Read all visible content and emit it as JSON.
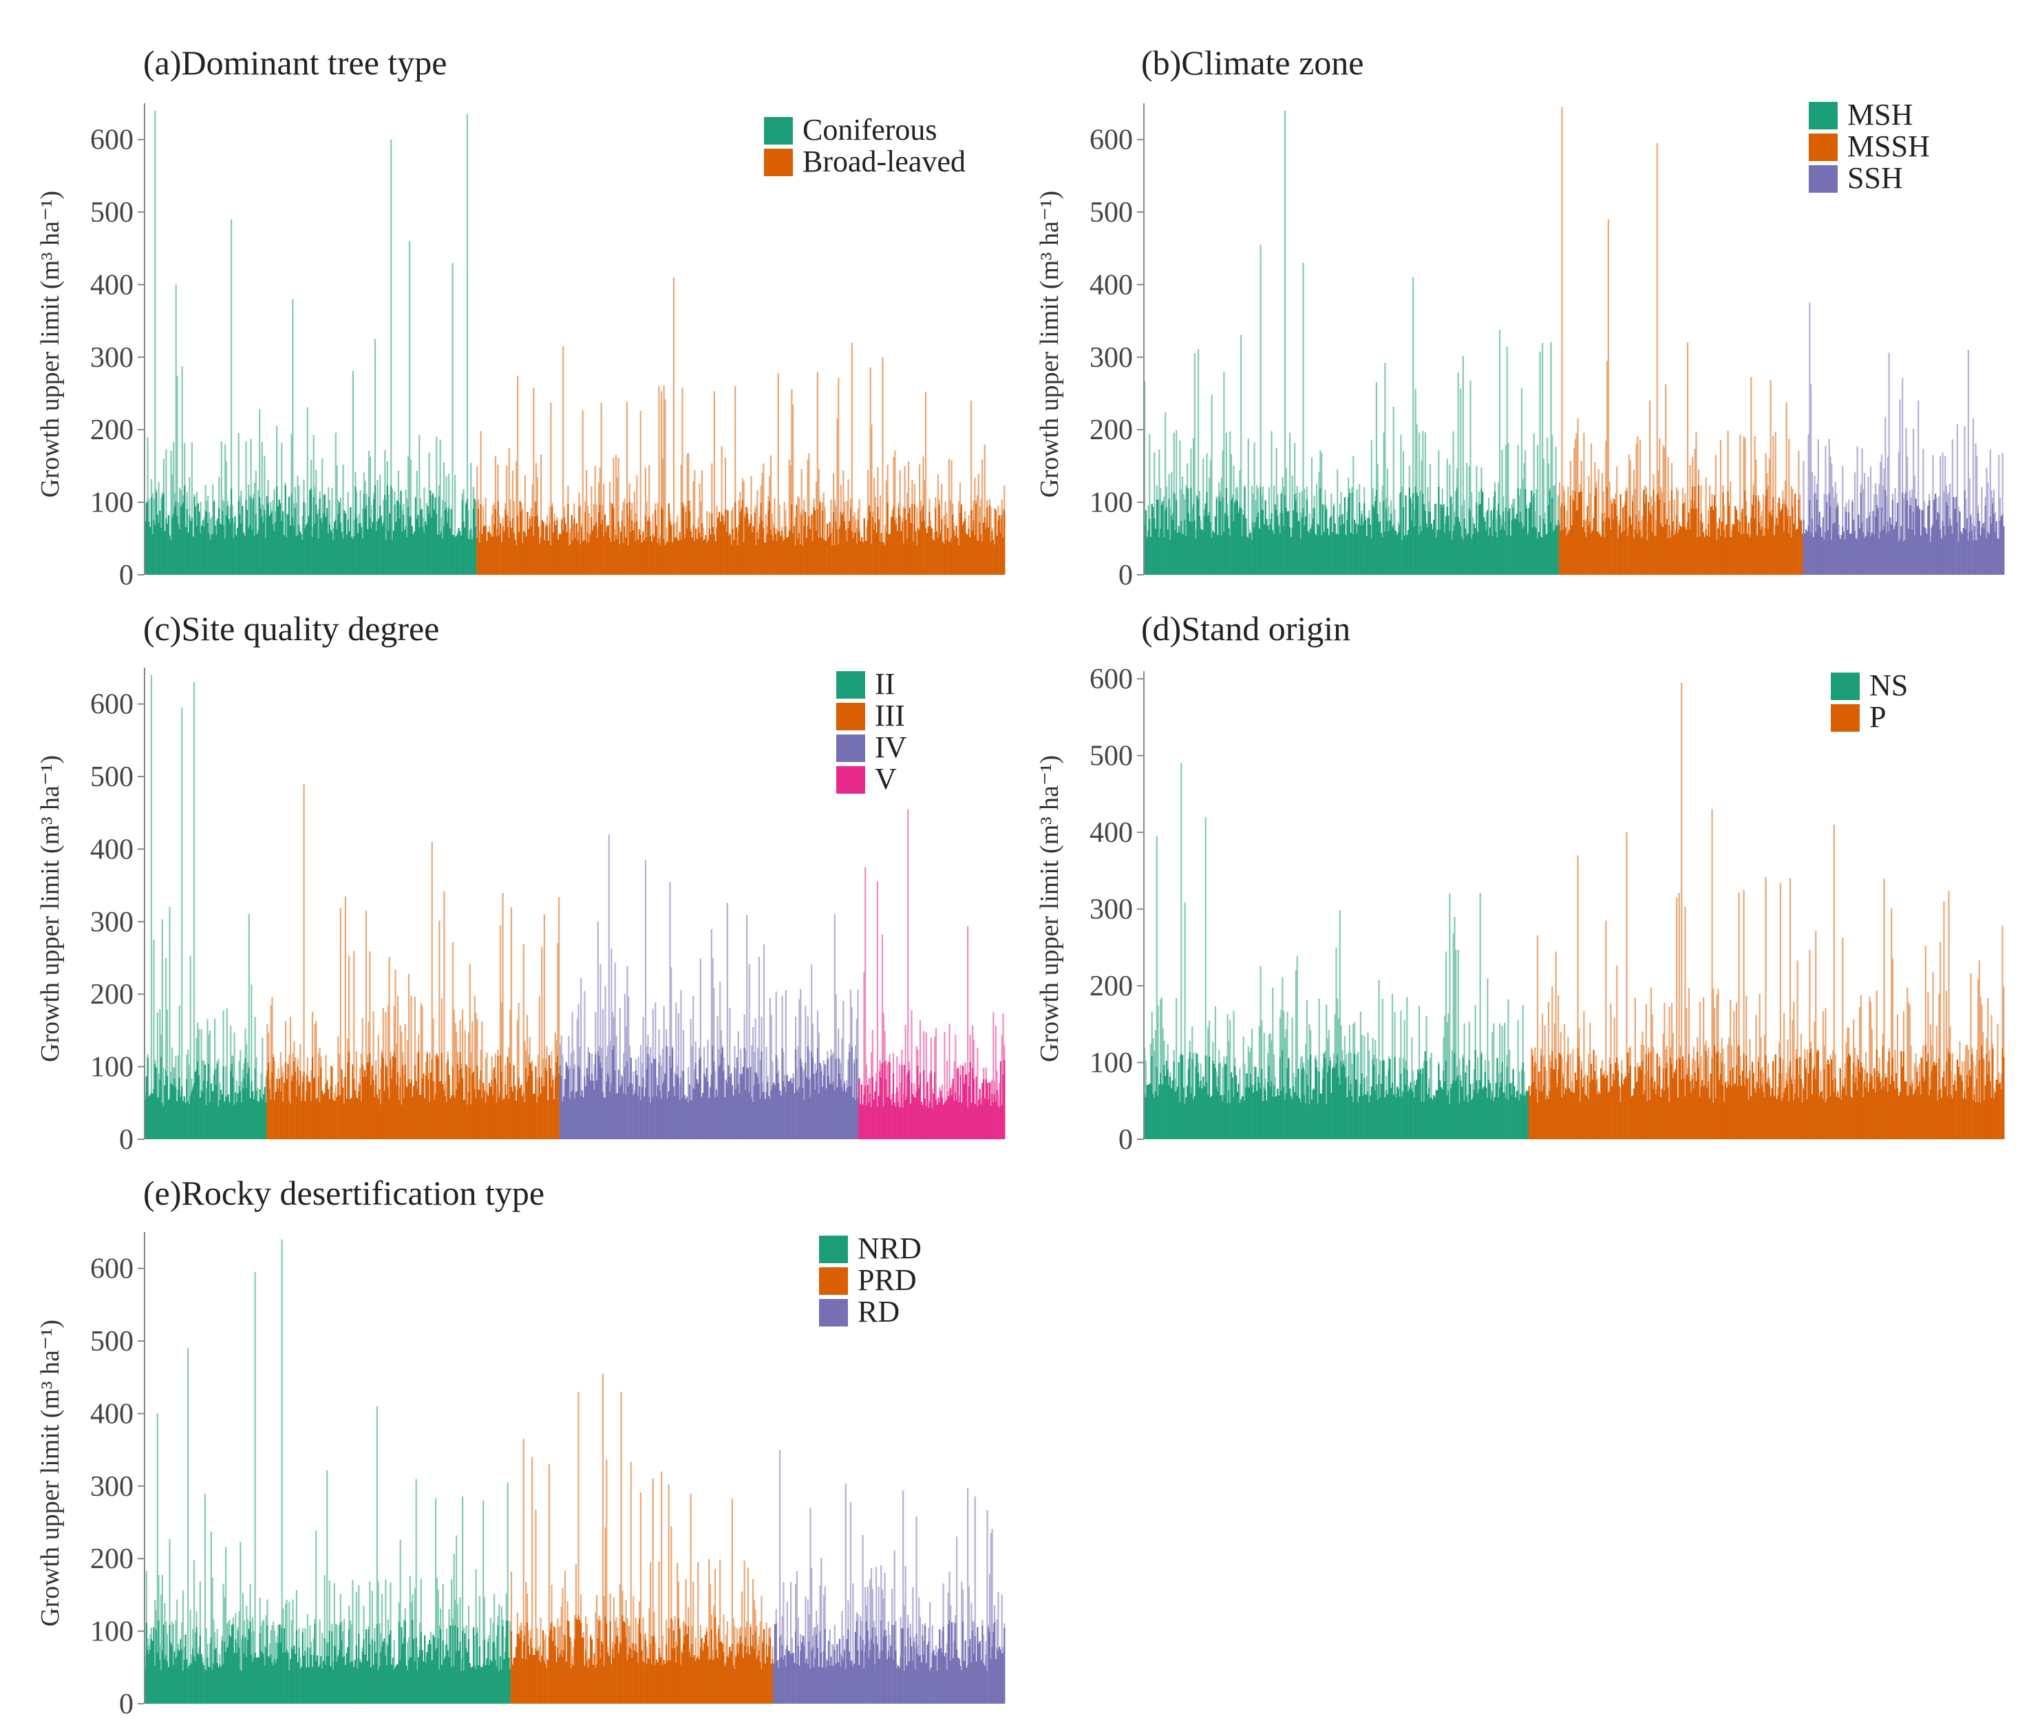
{
  "chart_data": [
    {
      "id": "a",
      "type": "bar",
      "title": "(a)Dominant tree type",
      "ylabel": "Growth upper limit (m³ ha⁻¹)",
      "ylim": [
        0,
        650
      ],
      "yticks": [
        "0",
        "100",
        "200",
        "300",
        "400",
        "500",
        "600"
      ],
      "legend_position": "top-right",
      "series": [
        {
          "name": "Coniferous",
          "color": "#1b9e77",
          "n": 270,
          "base": 95,
          "peaks": [
            [
              8,
              640
            ],
            [
              25,
              400
            ],
            [
              70,
              490
            ],
            [
              120,
              380
            ],
            [
              200,
              600
            ],
            [
              215,
              460
            ],
            [
              250,
              430
            ],
            [
              262,
              635
            ]
          ]
        },
        {
          "name": "Broad-leaved",
          "color": "#d95f02",
          "n": 430,
          "base": 80,
          "peaks": [
            [
              70,
              315
            ],
            [
              160,
              410
            ],
            [
              210,
              260
            ],
            [
              305,
              320
            ],
            [
              330,
              300
            ]
          ]
        }
      ]
    },
    {
      "id": "b",
      "type": "bar",
      "title": "(b)Climate zone",
      "ylabel": "Growth upper limit (m³ ha⁻¹)",
      "ylim": [
        0,
        650
      ],
      "yticks": [
        "0",
        "100",
        "200",
        "300",
        "400",
        "500",
        "600"
      ],
      "legend_position": "top-right",
      "series": [
        {
          "name": "MSH",
          "color": "#1b9e77",
          "n": 340,
          "base": 95,
          "peaks": [
            [
              95,
              455
            ],
            [
              115,
              640
            ],
            [
              130,
              430
            ],
            [
              220,
              410
            ]
          ]
        },
        {
          "name": "MSSH",
          "color": "#d95f02",
          "n": 200,
          "base": 95,
          "peaks": [
            [
              2,
              645
            ],
            [
              40,
              490
            ],
            [
              80,
              595
            ],
            [
              105,
              320
            ]
          ]
        },
        {
          "name": "SSH",
          "color": "#7570b3",
          "n": 165,
          "base": 90,
          "peaks": [
            [
              5,
              375
            ],
            [
              135,
              310
            ]
          ]
        }
      ]
    },
    {
      "id": "c",
      "type": "bar",
      "title": "(c)Site quality degree",
      "ylabel": "Growth upper limit (m³ ha⁻¹)",
      "ylim": [
        0,
        650
      ],
      "yticks": [
        "0",
        "100",
        "200",
        "300",
        "400",
        "500",
        "600"
      ],
      "legend_position": "top-right",
      "series": [
        {
          "name": "II",
          "color": "#1b9e77",
          "n": 100,
          "base": 90,
          "peaks": [
            [
              5,
              640
            ],
            [
              30,
              595
            ],
            [
              40,
              630
            ]
          ]
        },
        {
          "name": "III",
          "color": "#d95f02",
          "n": 240,
          "base": 95,
          "peaks": [
            [
              30,
              490
            ],
            [
              135,
              410
            ],
            [
              200,
              320
            ]
          ]
        },
        {
          "name": "IV",
          "color": "#7570b3",
          "n": 245,
          "base": 100,
          "peaks": [
            [
              40,
              420
            ],
            [
              70,
              385
            ],
            [
              90,
              355
            ],
            [
              225,
              310
            ]
          ]
        },
        {
          "name": "V",
          "color": "#e7298a",
          "n": 120,
          "base": 85,
          "peaks": [
            [
              5,
              375
            ],
            [
              15,
              355
            ],
            [
              40,
              455
            ]
          ]
        }
      ]
    },
    {
      "id": "d",
      "type": "bar",
      "title": "(d)Stand origin",
      "ylabel": "Growth upper limit (m³ ha⁻¹)",
      "ylim": [
        0,
        610
      ],
      "yticks": [
        "0",
        "100",
        "200",
        "300",
        "400",
        "500",
        "600"
      ],
      "legend_position": "top-right",
      "series": [
        {
          "name": "NS",
          "color": "#1b9e77",
          "n": 315,
          "base": 90,
          "peaks": [
            [
              10,
              395
            ],
            [
              30,
              490
            ],
            [
              50,
              420
            ],
            [
              250,
              320
            ]
          ]
        },
        {
          "name": "P",
          "color": "#d95f02",
          "n": 390,
          "base": 95,
          "peaks": [
            [
              40,
              370
            ],
            [
              80,
              400
            ],
            [
              125,
              595
            ],
            [
              150,
              430
            ],
            [
              250,
              410
            ],
            [
              340,
              310
            ]
          ]
        }
      ]
    },
    {
      "id": "e",
      "type": "bar",
      "title": "(e)Rocky desertification type",
      "ylabel": "Growth upper limit (m³ ha⁻¹)",
      "ylim": [
        0,
        650
      ],
      "yticks": [
        "0",
        "100",
        "200",
        "300",
        "400",
        "500",
        "600"
      ],
      "legend_position": "top-right",
      "series": [
        {
          "name": "NRD",
          "color": "#1b9e77",
          "n": 300,
          "base": 90,
          "peaks": [
            [
              10,
              400
            ],
            [
              35,
              490
            ],
            [
              90,
              595
            ],
            [
              112,
              640
            ],
            [
              190,
              410
            ]
          ]
        },
        {
          "name": "PRD",
          "color": "#d95f02",
          "n": 215,
          "base": 95,
          "peaks": [
            [
              10,
              365
            ],
            [
              55,
              430
            ],
            [
              75,
              455
            ],
            [
              90,
              430
            ]
          ]
        },
        {
          "name": "RD",
          "color": "#7570b3",
          "n": 190,
          "base": 90,
          "peaks": [
            [
              5,
              350
            ],
            [
              30,
              270
            ]
          ]
        }
      ]
    }
  ]
}
